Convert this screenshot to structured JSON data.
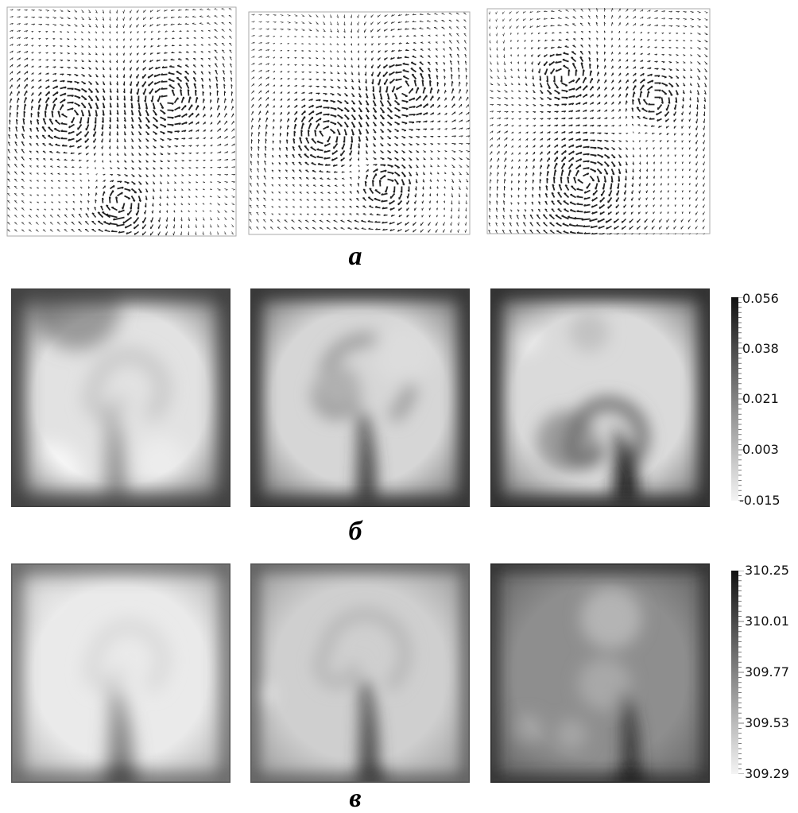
{
  "figure": {
    "row_labels": {
      "a": "а",
      "b": "б",
      "c": "в"
    },
    "colorbar_b": {
      "ticks": [
        "0.056",
        "0.038",
        "0.021",
        "0.003",
        "-0.015"
      ],
      "color_max": "#111111",
      "color_min": "#f2f2f2"
    },
    "colorbar_c": {
      "ticks": [
        "310.25",
        "310.01",
        "309.77",
        "309.53",
        "309.29"
      ],
      "color_max": "#111111",
      "color_min": "#f2f2f2"
    }
  }
}
